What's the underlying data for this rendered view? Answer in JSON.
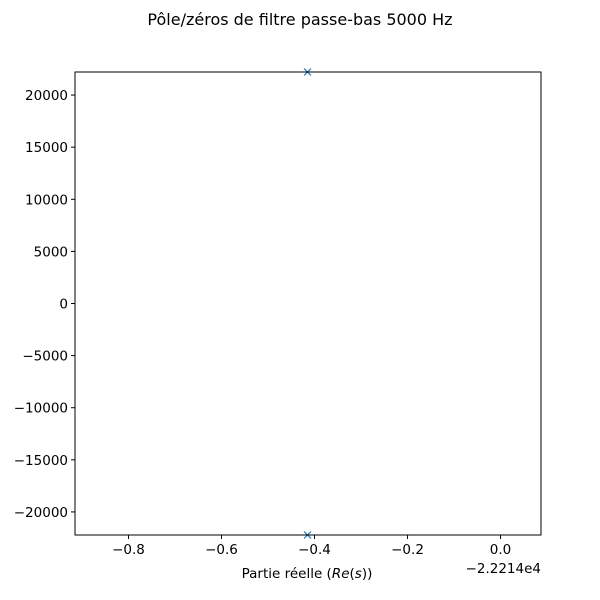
{
  "chart_data": {
    "type": "scatter",
    "title": "Pôle/zéros de filtre passe-bas 5000 Hz",
    "xlabel": "Partie réelle (Re(s))",
    "xlabel_parts": {
      "prefix": "Partie réelle (",
      "math": "Re",
      "paren_open": "(",
      "var": "s",
      "suffix": "))"
    },
    "ylabel": "",
    "x_offset_label": "−2.2214e4",
    "x_offset": -22214,
    "xlim": [
      -0.915,
      0.087
    ],
    "ylim": [
      -22214,
      22214
    ],
    "xticks": [
      -0.8,
      -0.6,
      -0.4,
      -0.2,
      0.0
    ],
    "xtick_labels": [
      "−0.8",
      "−0.6",
      "−0.4",
      "−0.2",
      "0.0"
    ],
    "yticks": [
      20000,
      15000,
      10000,
      5000,
      0,
      -5000,
      -10000,
      -15000,
      -20000
    ],
    "ytick_labels": [
      "20000",
      "15000",
      "10000",
      "5000",
      "0",
      "−5000",
      "−10000",
      "−15000",
      "−20000"
    ],
    "grid": false,
    "series": [
      {
        "marker": "x",
        "color": "#1f77b4",
        "points": [
          {
            "x": -0.415,
            "y": 22214
          },
          {
            "x": -0.415,
            "y": -22214
          }
        ]
      }
    ]
  }
}
